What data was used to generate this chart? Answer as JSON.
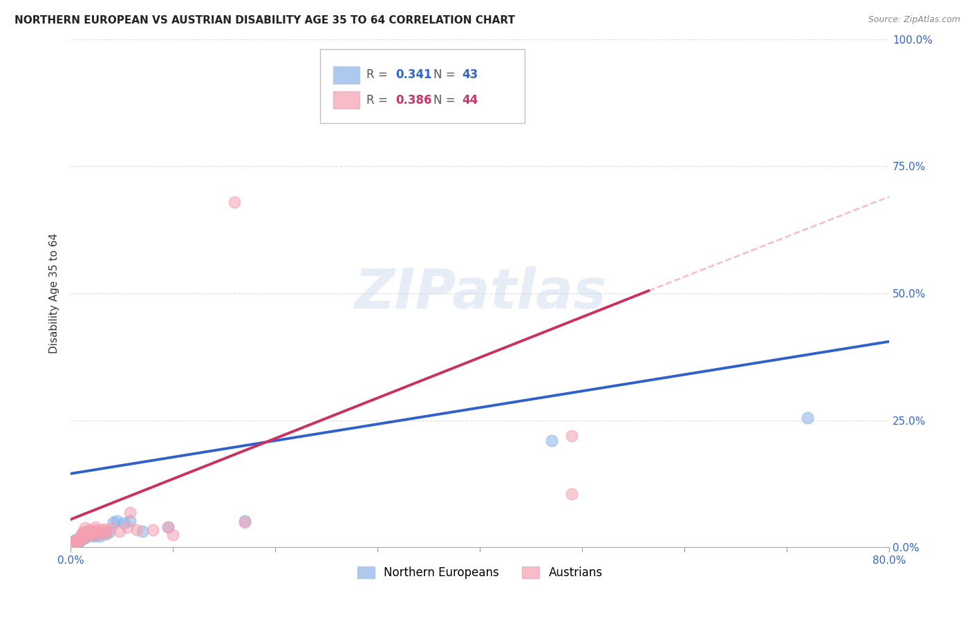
{
  "title": "NORTHERN EUROPEAN VS AUSTRIAN DISABILITY AGE 35 TO 64 CORRELATION CHART",
  "source": "Source: ZipAtlas.com",
  "ylabel": "Disability Age 35 to 64",
  "xmin": 0.0,
  "xmax": 0.8,
  "ymin": 0.0,
  "ymax": 1.0,
  "legend_r_blue": "0.341",
  "legend_n_blue": "43",
  "legend_r_pink": "0.386",
  "legend_n_pink": "44",
  "blue_color": "#8AB4E8",
  "pink_color": "#F4A0B0",
  "blue_fill": "#8AB4E8",
  "pink_fill": "#F4A0B0",
  "blue_line_color": "#3060CC",
  "pink_line_color": "#CC3060",
  "blue_line_x": [
    0.0,
    0.8
  ],
  "blue_line_y": [
    0.145,
    0.405
  ],
  "pink_line_x": [
    0.0,
    0.565
  ],
  "pink_line_y": [
    0.055,
    0.505
  ],
  "dashed_line_x": [
    0.565,
    0.8
  ],
  "dashed_line_y": [
    0.505,
    0.69
  ],
  "blue_scatter": [
    [
      0.002,
      0.01
    ],
    [
      0.003,
      0.012
    ],
    [
      0.004,
      0.008
    ],
    [
      0.005,
      0.015
    ],
    [
      0.006,
      0.014
    ],
    [
      0.006,
      0.01
    ],
    [
      0.007,
      0.012
    ],
    [
      0.007,
      0.016
    ],
    [
      0.008,
      0.01
    ],
    [
      0.009,
      0.018
    ],
    [
      0.009,
      0.014
    ],
    [
      0.01,
      0.02
    ],
    [
      0.01,
      0.022
    ],
    [
      0.011,
      0.016
    ],
    [
      0.011,
      0.024
    ],
    [
      0.012,
      0.018
    ],
    [
      0.013,
      0.022
    ],
    [
      0.013,
      0.026
    ],
    [
      0.014,
      0.024
    ],
    [
      0.015,
      0.02
    ],
    [
      0.016,
      0.022
    ],
    [
      0.017,
      0.028
    ],
    [
      0.018,
      0.024
    ],
    [
      0.02,
      0.026
    ],
    [
      0.021,
      0.03
    ],
    [
      0.022,
      0.022
    ],
    [
      0.023,
      0.026
    ],
    [
      0.025,
      0.024
    ],
    [
      0.026,
      0.028
    ],
    [
      0.028,
      0.022
    ],
    [
      0.03,
      0.028
    ],
    [
      0.032,
      0.03
    ],
    [
      0.034,
      0.026
    ],
    [
      0.038,
      0.03
    ],
    [
      0.042,
      0.05
    ],
    [
      0.045,
      0.052
    ],
    [
      0.052,
      0.048
    ],
    [
      0.058,
      0.052
    ],
    [
      0.07,
      0.032
    ],
    [
      0.095,
      0.04
    ],
    [
      0.17,
      0.052
    ],
    [
      0.47,
      0.21
    ],
    [
      0.72,
      0.255
    ]
  ],
  "pink_scatter": [
    [
      0.002,
      0.008
    ],
    [
      0.003,
      0.01
    ],
    [
      0.004,
      0.012
    ],
    [
      0.005,
      0.01
    ],
    [
      0.006,
      0.014
    ],
    [
      0.007,
      0.012
    ],
    [
      0.008,
      0.016
    ],
    [
      0.009,
      0.014
    ],
    [
      0.009,
      0.02
    ],
    [
      0.01,
      0.022
    ],
    [
      0.011,
      0.026
    ],
    [
      0.011,
      0.018
    ],
    [
      0.012,
      0.03
    ],
    [
      0.013,
      0.024
    ],
    [
      0.014,
      0.038
    ],
    [
      0.015,
      0.028
    ],
    [
      0.016,
      0.022
    ],
    [
      0.017,
      0.032
    ],
    [
      0.018,
      0.028
    ],
    [
      0.019,
      0.034
    ],
    [
      0.02,
      0.03
    ],
    [
      0.021,
      0.025
    ],
    [
      0.022,
      0.032
    ],
    [
      0.023,
      0.03
    ],
    [
      0.024,
      0.04
    ],
    [
      0.025,
      0.035
    ],
    [
      0.026,
      0.026
    ],
    [
      0.028,
      0.032
    ],
    [
      0.03,
      0.035
    ],
    [
      0.032,
      0.028
    ],
    [
      0.033,
      0.036
    ],
    [
      0.035,
      0.03
    ],
    [
      0.04,
      0.038
    ],
    [
      0.048,
      0.032
    ],
    [
      0.055,
      0.04
    ],
    [
      0.058,
      0.068
    ],
    [
      0.065,
      0.035
    ],
    [
      0.08,
      0.035
    ],
    [
      0.095,
      0.04
    ],
    [
      0.1,
      0.025
    ],
    [
      0.16,
      0.68
    ],
    [
      0.17,
      0.05
    ],
    [
      0.49,
      0.22
    ],
    [
      0.49,
      0.105
    ]
  ],
  "watermark_text": "ZIPatlas",
  "background_color": "#FFFFFF",
  "grid_color": "#DDDDDD"
}
